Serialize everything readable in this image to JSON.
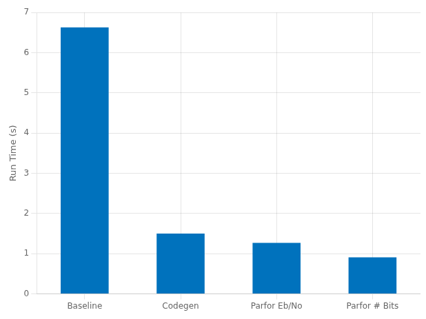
{
  "chart_data": {
    "type": "bar",
    "categories": [
      "Baseline",
      "Codegen",
      "Parfor Eb/No",
      "Parfor # Bits"
    ],
    "values": [
      6.63,
      1.5,
      1.27,
      0.91
    ],
    "color": "#0072bd",
    "ylabel": "Run Time (s)",
    "ylim": [
      0,
      7
    ],
    "yticks": [
      0,
      1,
      2,
      3,
      4,
      5,
      6,
      7
    ],
    "grid": true
  }
}
